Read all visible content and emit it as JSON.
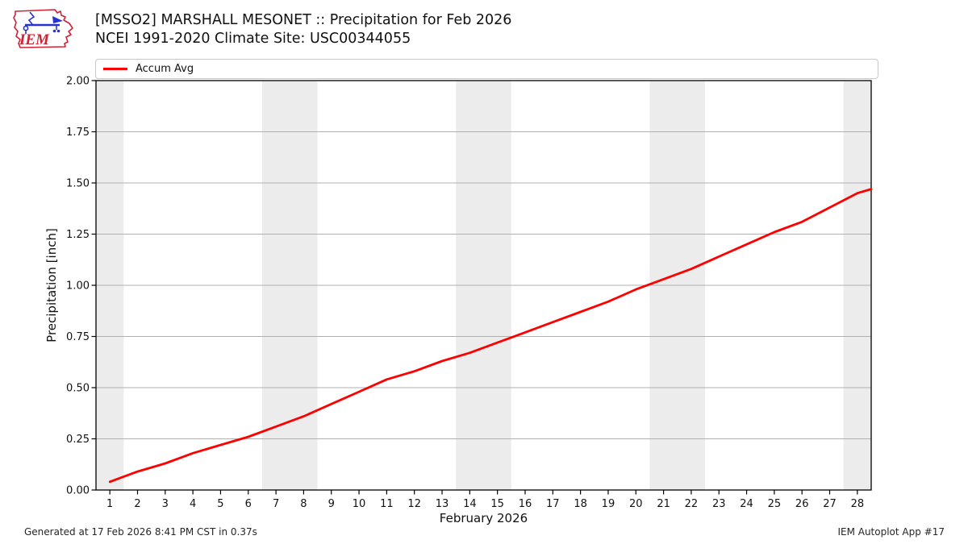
{
  "header": {
    "title_line1": "[MSSO2] MARSHALL MESONET :: Precipitation for Feb 2026",
    "title_line2": "NCEI 1991-2020 Climate Site: USC00344055",
    "logo_text": "IEM"
  },
  "legend": {
    "items": [
      {
        "label": "Accum Avg",
        "color": "#ff0000"
      }
    ]
  },
  "chart_data": {
    "type": "line",
    "title": "[MSSO2] MARSHALL MESONET :: Precipitation for Feb 2026",
    "subtitle": "NCEI 1991-2020 Climate Site: USC00344055",
    "xlabel": "February 2026",
    "ylabel": "Precipitation [inch]",
    "xlim": [
      0.5,
      28.5
    ],
    "ylim": [
      0.0,
      2.0
    ],
    "grid": "horizontal",
    "legend_position": "top",
    "xticks": [
      1,
      2,
      3,
      4,
      5,
      6,
      7,
      8,
      9,
      10,
      11,
      12,
      13,
      14,
      15,
      16,
      17,
      18,
      19,
      20,
      21,
      22,
      23,
      24,
      25,
      26,
      27,
      28
    ],
    "xtick_labels": [
      "1",
      "2",
      "3",
      "4",
      "5",
      "6",
      "7",
      "8",
      "9",
      "10",
      "11",
      "12",
      "13",
      "14",
      "15",
      "16",
      "17",
      "18",
      "19",
      "20",
      "21",
      "22",
      "23",
      "24",
      "25",
      "26",
      "27",
      "28"
    ],
    "yticks": [
      0.0,
      0.25,
      0.5,
      0.75,
      1.0,
      1.25,
      1.5,
      1.75,
      2.0
    ],
    "ytick_labels": [
      "0.00",
      "0.25",
      "0.50",
      "0.75",
      "1.00",
      "1.25",
      "1.50",
      "1.75",
      "2.00"
    ],
    "weekend_bands_x": [
      [
        0.5,
        1.5
      ],
      [
        6.5,
        8.5
      ],
      [
        13.5,
        15.5
      ],
      [
        20.5,
        22.5
      ],
      [
        27.5,
        28.5
      ]
    ],
    "series": [
      {
        "name": "Accum Avg",
        "color": "#ff0000",
        "x": [
          1,
          2,
          3,
          4,
          5,
          6,
          7,
          8,
          9,
          10,
          11,
          12,
          13,
          14,
          15,
          16,
          17,
          18,
          19,
          20,
          21,
          22,
          23,
          24,
          25,
          26,
          27,
          28,
          28.5
        ],
        "y": [
          0.04,
          0.09,
          0.13,
          0.18,
          0.22,
          0.26,
          0.31,
          0.36,
          0.42,
          0.48,
          0.54,
          0.58,
          0.63,
          0.67,
          0.72,
          0.77,
          0.82,
          0.87,
          0.92,
          0.98,
          1.03,
          1.08,
          1.14,
          1.2,
          1.26,
          1.31,
          1.38,
          1.45,
          1.47
        ]
      }
    ]
  },
  "footer": {
    "left": "Generated at 17 Feb 2026 8:41 PM CST in 0.37s",
    "right": "IEM Autoplot App #17"
  },
  "colors": {
    "line_red": "#ff0000",
    "band_gray": "#ececec",
    "grid_gray": "#b0b0b0",
    "spine_black": "#000000",
    "logo_red": "#cf2233",
    "logo_blue": "#2633cc"
  }
}
